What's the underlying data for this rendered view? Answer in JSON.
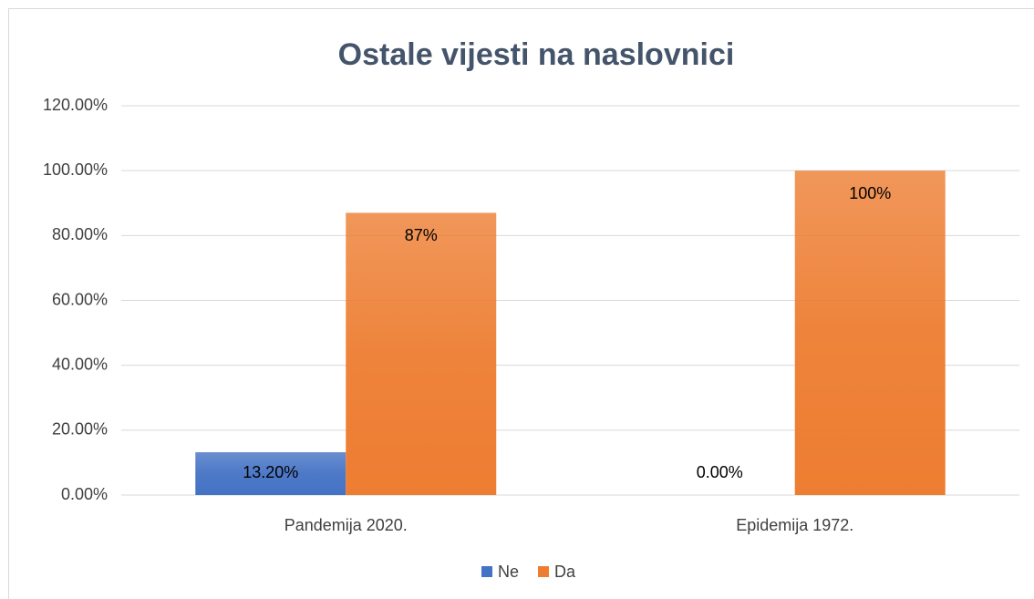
{
  "chart_data": {
    "type": "bar",
    "title": "Ostale vijesti na naslovnici",
    "categories": [
      "Pandemija 2020.",
      "Epidemija 1972."
    ],
    "series": [
      {
        "name": "Ne",
        "color": "#4472c4",
        "values": [
          13.2,
          0
        ],
        "value_labels": [
          "13.20%",
          "0.00%"
        ]
      },
      {
        "name": "Da",
        "color": "#ed7d31",
        "values": [
          87,
          100
        ],
        "value_labels": [
          "87%",
          "100%"
        ]
      }
    ],
    "ylim": [
      0,
      120
    ],
    "yticks": [
      {
        "value": 0,
        "label": "0.00%"
      },
      {
        "value": 20,
        "label": "20.00%"
      },
      {
        "value": 40,
        "label": "40.00%"
      },
      {
        "value": 60,
        "label": "60.00%"
      },
      {
        "value": 80,
        "label": "80.00%"
      },
      {
        "value": 100,
        "label": "100.00%"
      },
      {
        "value": 120,
        "label": "120.00%"
      }
    ],
    "grid": true,
    "legend": "bottom"
  }
}
